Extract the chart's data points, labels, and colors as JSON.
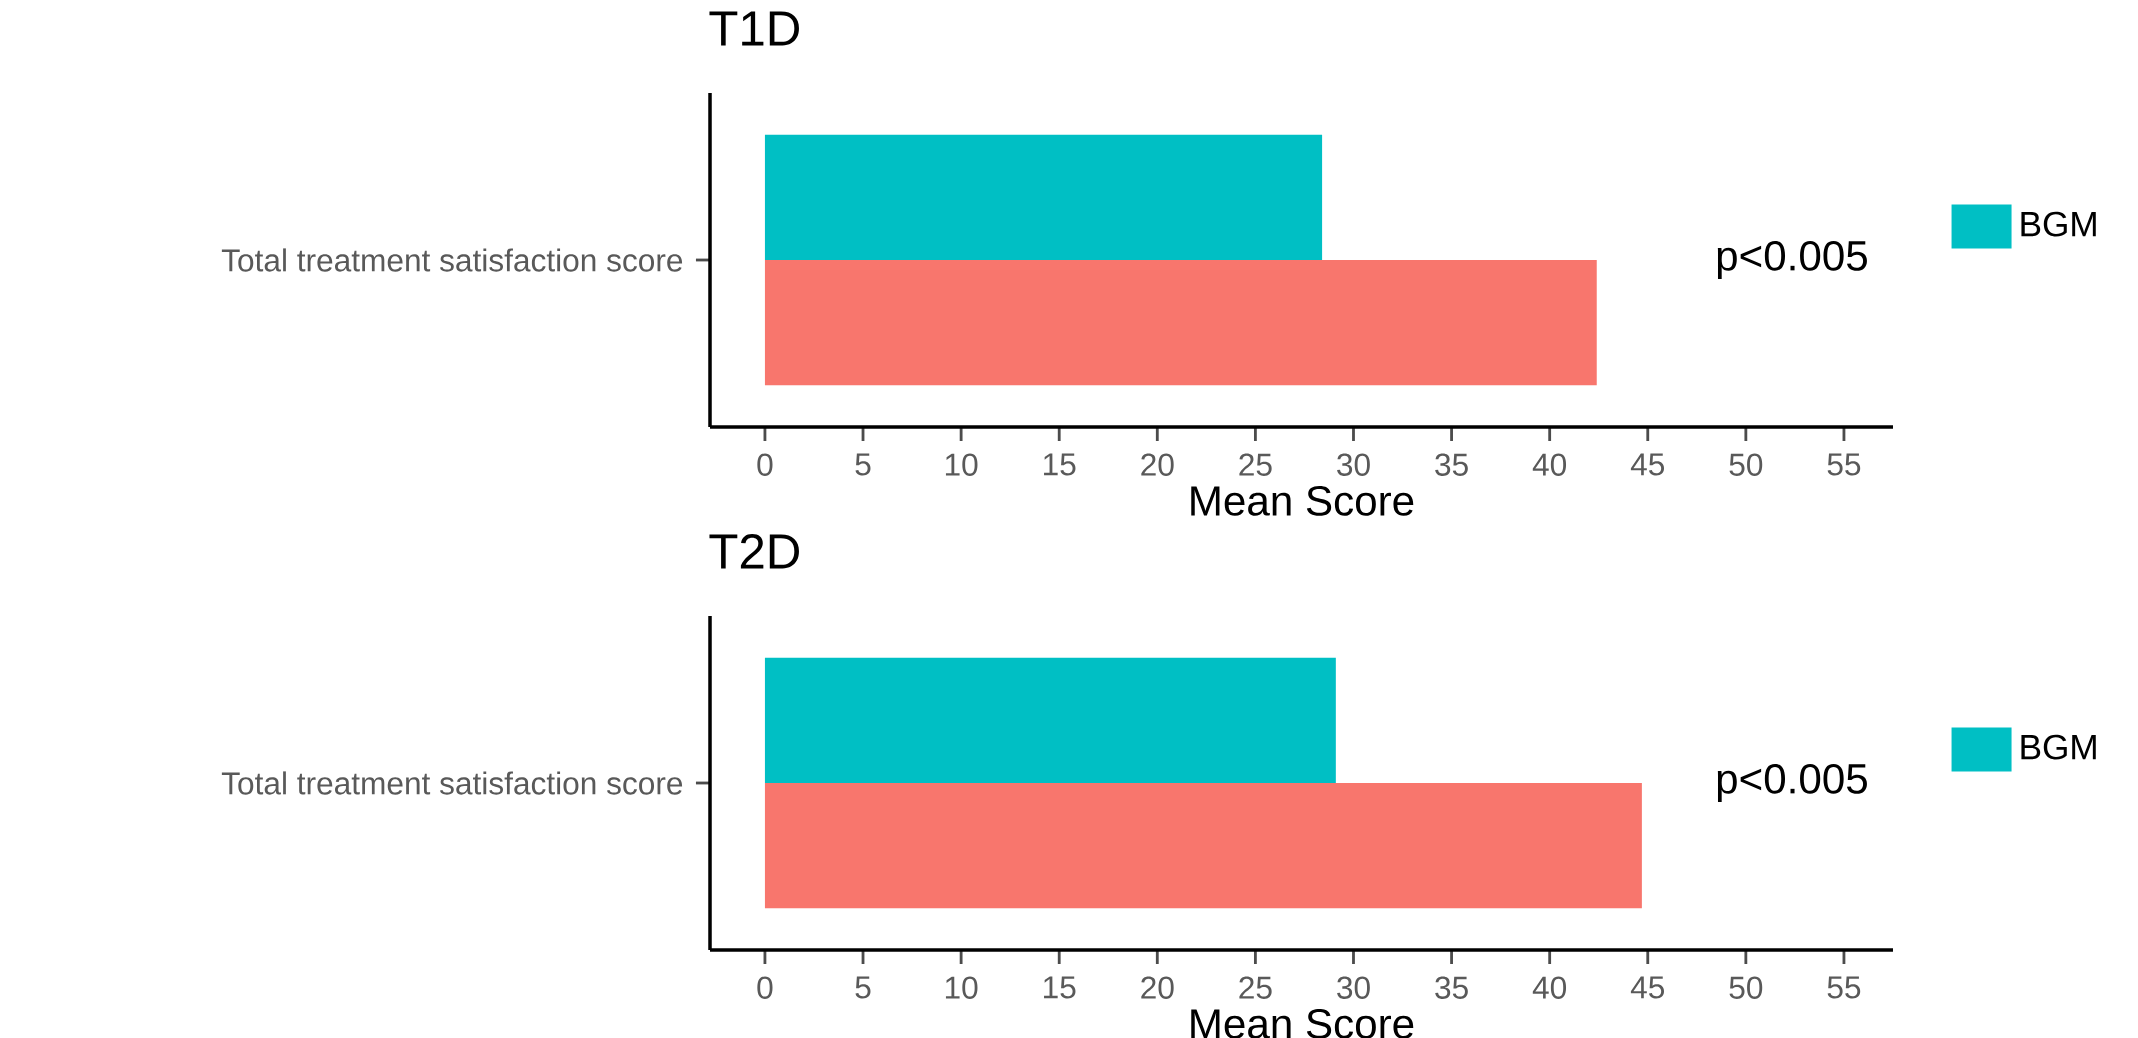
{
  "chart_data": [
    {
      "type": "bar",
      "orientation": "horizontal",
      "title": "T1D",
      "xlabel": "Mean Score",
      "categories": [
        "Total treatment satisfaction score"
      ],
      "series": [
        {
          "name": "BGM",
          "color": "#00bfc4",
          "values": [
            28.4
          ]
        },
        {
          "color": "#f8766d",
          "values": [
            42.4
          ]
        }
      ],
      "xlim": [
        -2.8,
        57.5
      ],
      "xticks": [
        0,
        5,
        10,
        15,
        20,
        25,
        30,
        35,
        40,
        45,
        50,
        55
      ],
      "legend": "right",
      "annotations": [
        "p<0.005"
      ]
    },
    {
      "type": "bar",
      "orientation": "horizontal",
      "title": "T2D",
      "xlabel": "Mean Score",
      "categories": [
        "Total treatment satisfaction score"
      ],
      "series": [
        {
          "name": "BGM",
          "color": "#00bfc4",
          "values": [
            29.1
          ]
        },
        {
          "color": "#f8766d",
          "values": [
            44.7
          ]
        }
      ],
      "xlim": [
        -2.8,
        57.5
      ],
      "xticks": [
        0,
        5,
        10,
        15,
        20,
        25,
        30,
        35,
        40,
        45,
        50,
        55
      ],
      "legend": "right",
      "annotations": [
        "p<0.005"
      ]
    }
  ]
}
